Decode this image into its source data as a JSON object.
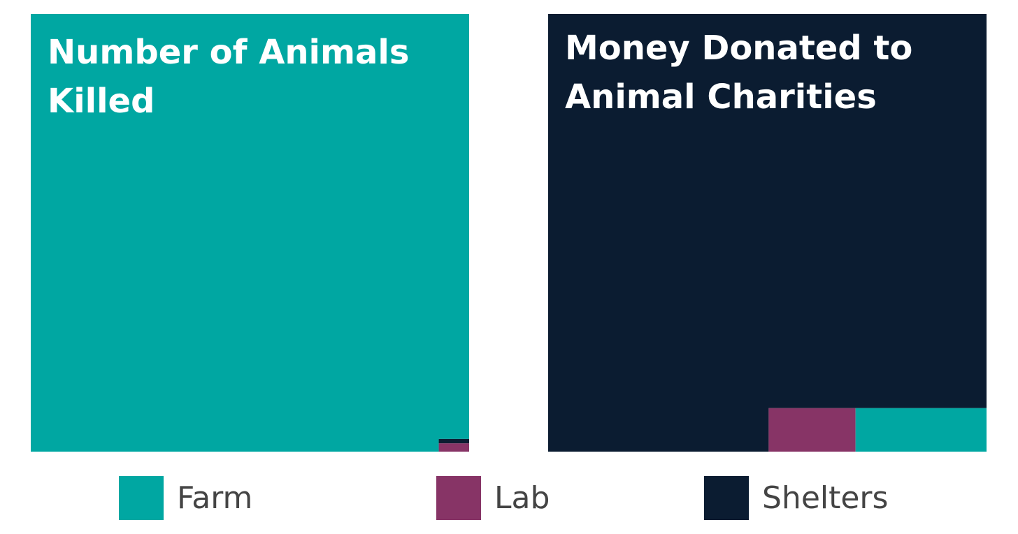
{
  "legend": {
    "categories": [
      "Farm",
      "Lab",
      "Shelters"
    ],
    "colors": [
      "#00a7a2",
      "#873466",
      "#0b1c31"
    ]
  },
  "chart_data": [
    {
      "type": "treemap",
      "title": "Number of Animals Killed",
      "values": [
        99.8,
        0.13,
        0.07
      ]
    },
    {
      "type": "treemap",
      "title": "Money Donated to Animal Charities",
      "values": [
        2.97,
        1.97,
        95.06
      ]
    }
  ]
}
